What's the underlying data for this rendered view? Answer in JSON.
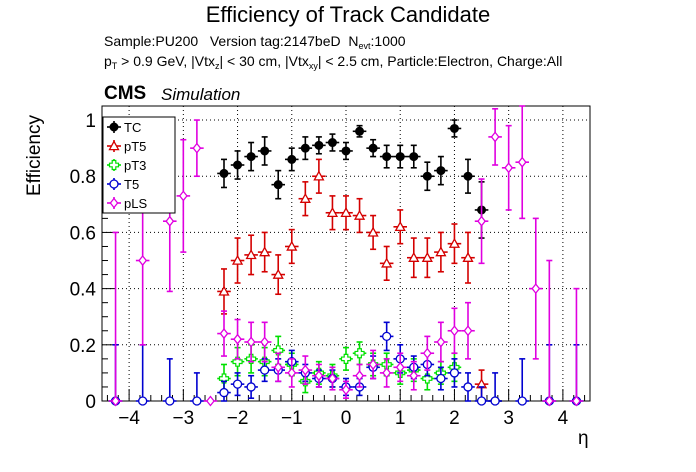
{
  "title": "Efficiency of Track Candidate",
  "subtitle": {
    "sample_label": "Sample:PU200",
    "version_label": "Version tag:2147beD",
    "nevt_prefix": "N",
    "nevt_sub": "evt",
    "nevt_value": ":1000",
    "pt_prefix": "p",
    "pt_sub": "T",
    "pt_text": " > 0.9 GeV, |Vtx",
    "vtxz_sub": "z",
    "vtxz_text": "| < 30 cm, |Vtx",
    "vtxxy_sub": "xy",
    "rest_text": "| < 2.5 cm, Particle:Electron, Charge:All"
  },
  "cms_label": "CMS",
  "simulation_label": "Simulation",
  "colors": {
    "TC": "#000000",
    "pT5": "#d40000",
    "pT3": "#00e000",
    "T5": "#0000d0",
    "pLS": "#e000e0"
  },
  "chart_data": {
    "type": "scatter",
    "xlabel": "η",
    "ylabel": "Efficiency",
    "xlim": [
      -4.5,
      4.5
    ],
    "ylim": [
      0,
      1.05
    ],
    "x_ticks": [
      "−4",
      "−3",
      "−2",
      "−1",
      "0",
      "1",
      "2",
      "3",
      "4"
    ],
    "x_tick_values": [
      -4,
      -3,
      -2,
      -1,
      0,
      1,
      2,
      3,
      4
    ],
    "y_ticks": [
      "0",
      "0.2",
      "0.4",
      "0.6",
      "0.8",
      "1"
    ],
    "y_tick_values": [
      0,
      0.2,
      0.4,
      0.6,
      0.8,
      1.0
    ],
    "grid": true,
    "legend_position": "top-left",
    "bin_halfwidth": 0.125,
    "series": [
      {
        "name": "TC",
        "marker": "filled-circle",
        "x": [
          -2.25,
          -2.0,
          -1.75,
          -1.5,
          -1.25,
          -1.0,
          -0.75,
          -0.5,
          -0.25,
          0.0,
          0.25,
          0.5,
          0.75,
          1.0,
          1.25,
          1.5,
          1.75,
          2.0,
          2.25,
          2.5,
          2.75
        ],
        "y": [
          0.81,
          0.84,
          0.87,
          0.89,
          0.77,
          0.86,
          0.9,
          0.91,
          0.92,
          0.89,
          0.96,
          0.9,
          0.87,
          0.87,
          0.87,
          0.8,
          0.82,
          0.97,
          0.8,
          0.68,
          0.0
        ],
        "err": [
          0.05,
          0.05,
          0.05,
          0.05,
          0.05,
          0.04,
          0.04,
          0.03,
          0.03,
          0.03,
          0.02,
          0.03,
          0.04,
          0.04,
          0.04,
          0.05,
          0.05,
          0.03,
          0.06,
          0.1,
          0.0
        ]
      },
      {
        "name": "pT5",
        "marker": "open-triangle",
        "x": [
          -2.25,
          -2.0,
          -1.75,
          -1.5,
          -1.25,
          -1.0,
          -0.75,
          -0.5,
          -0.25,
          0.0,
          0.25,
          0.5,
          0.75,
          1.0,
          1.25,
          1.5,
          1.75,
          2.0,
          2.25,
          2.5
        ],
        "y": [
          0.39,
          0.5,
          0.52,
          0.53,
          0.45,
          0.55,
          0.72,
          0.8,
          0.67,
          0.67,
          0.66,
          0.6,
          0.49,
          0.62,
          0.51,
          0.51,
          0.53,
          0.56,
          0.51,
          0.06
        ],
        "err": [
          0.08,
          0.08,
          0.07,
          0.07,
          0.07,
          0.06,
          0.06,
          0.06,
          0.06,
          0.06,
          0.06,
          0.06,
          0.06,
          0.06,
          0.07,
          0.07,
          0.07,
          0.07,
          0.09,
          0.05
        ]
      },
      {
        "name": "pT3",
        "marker": "open-cross",
        "x": [
          -2.25,
          -2.0,
          -1.75,
          -1.5,
          -1.25,
          -1.0,
          -0.75,
          -0.5,
          -0.25,
          0.0,
          0.25,
          0.5,
          0.75,
          1.0,
          1.25,
          1.5,
          1.75,
          2.0
        ],
        "y": [
          0.08,
          0.14,
          0.15,
          0.14,
          0.18,
          0.13,
          0.07,
          0.1,
          0.09,
          0.15,
          0.17,
          0.13,
          0.13,
          0.1,
          0.11,
          0.08,
          0.1,
          0.12
        ],
        "err": [
          0.05,
          0.05,
          0.05,
          0.05,
          0.05,
          0.04,
          0.04,
          0.04,
          0.04,
          0.04,
          0.04,
          0.04,
          0.04,
          0.04,
          0.04,
          0.04,
          0.04,
          0.05
        ]
      },
      {
        "name": "T5",
        "marker": "open-circle",
        "x": [
          -4.25,
          -3.75,
          -3.25,
          -2.75,
          -2.25,
          -2.0,
          -1.75,
          -1.5,
          -1.25,
          -1.0,
          -0.75,
          -0.5,
          -0.25,
          0.0,
          0.25,
          0.5,
          0.75,
          1.0,
          1.25,
          1.5,
          1.75,
          2.0,
          2.25,
          2.5,
          2.75,
          3.25,
          3.75,
          4.25
        ],
        "y": [
          0.0,
          0.0,
          0.0,
          0.0,
          0.03,
          0.06,
          0.05,
          0.11,
          0.11,
          0.14,
          0.1,
          0.08,
          0.08,
          0.05,
          0.05,
          0.12,
          0.23,
          0.15,
          0.12,
          0.13,
          0.08,
          0.1,
          0.05,
          0.0,
          0.0,
          0.0,
          0.0,
          0.0
        ],
        "err": [
          0.2,
          0.2,
          0.15,
          0.1,
          0.04,
          0.04,
          0.04,
          0.04,
          0.04,
          0.04,
          0.03,
          0.03,
          0.03,
          0.03,
          0.03,
          0.04,
          0.05,
          0.05,
          0.04,
          0.04,
          0.04,
          0.05,
          0.05,
          0.05,
          0.1,
          0.15,
          0.2,
          0.2
        ]
      },
      {
        "name": "pLS",
        "marker": "open-diamond",
        "x": [
          -4.25,
          -3.75,
          -3.25,
          -3.0,
          -2.75,
          -2.5,
          -2.25,
          -2.0,
          -1.75,
          -1.5,
          -1.25,
          -1.0,
          -0.75,
          -0.5,
          -0.25,
          0.0,
          0.25,
          0.5,
          0.75,
          1.0,
          1.25,
          1.5,
          1.75,
          2.0,
          2.25,
          2.5,
          2.75,
          3.0,
          3.25,
          3.5,
          3.75,
          4.25
        ],
        "y": [
          0.0,
          0.5,
          0.64,
          0.73,
          0.9,
          0.0,
          0.24,
          0.22,
          0.21,
          0.21,
          0.12,
          0.1,
          0.11,
          0.09,
          0.08,
          0.04,
          0.09,
          0.13,
          0.1,
          0.12,
          0.09,
          0.17,
          0.21,
          0.25,
          0.25,
          0.64,
          0.94,
          0.83,
          0.85,
          0.4,
          0.0,
          0.0
        ],
        "err": [
          0.6,
          0.3,
          0.25,
          0.2,
          0.1,
          0.0,
          0.08,
          0.07,
          0.07,
          0.07,
          0.05,
          0.05,
          0.05,
          0.04,
          0.04,
          0.03,
          0.04,
          0.05,
          0.05,
          0.05,
          0.05,
          0.06,
          0.07,
          0.08,
          0.1,
          0.15,
          0.1,
          0.15,
          0.2,
          0.25,
          0.5,
          0.4
        ]
      }
    ]
  }
}
